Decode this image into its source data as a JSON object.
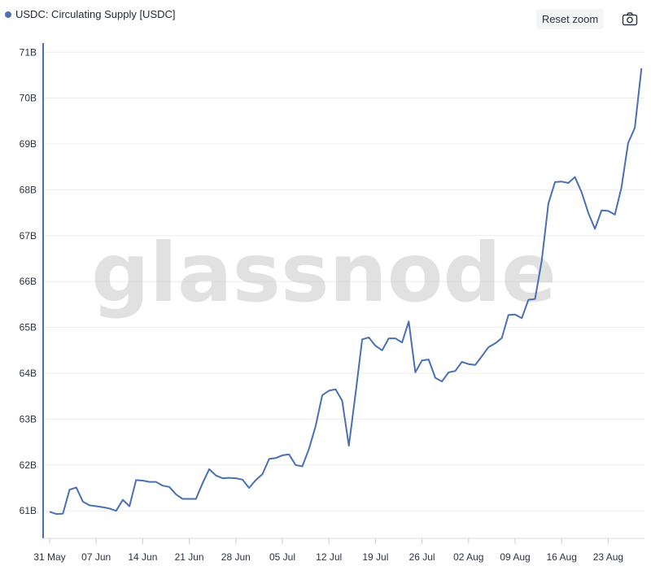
{
  "legend": {
    "label": "USDC: Circulating Supply [USDC]"
  },
  "toolbar": {
    "reset_zoom_label": "Reset zoom",
    "camera_icon": "camera-icon"
  },
  "watermark": "glassnode",
  "colors": {
    "series": "#4a6fb5",
    "grid": "#ececec",
    "axis": "#4a6fb5",
    "tick_text": "#2b3440"
  },
  "chart_data": {
    "type": "line",
    "title": "",
    "xlabel": "",
    "ylabel": "",
    "ylim": [
      60.4,
      71.2
    ],
    "grid": true,
    "legend_placement": "top-left",
    "y_ticks": [
      {
        "value": 61,
        "label": "61B"
      },
      {
        "value": 62,
        "label": "62B"
      },
      {
        "value": 63,
        "label": "63B"
      },
      {
        "value": 64,
        "label": "64B"
      },
      {
        "value": 65,
        "label": "65B"
      },
      {
        "value": 66,
        "label": "66B"
      },
      {
        "value": 67,
        "label": "67B"
      },
      {
        "value": 68,
        "label": "68B"
      },
      {
        "value": 69,
        "label": "69B"
      },
      {
        "value": 70,
        "label": "70B"
      },
      {
        "value": 71,
        "label": "71B"
      }
    ],
    "x_ticks": [
      {
        "date": "2021-05-31",
        "label": "31 May"
      },
      {
        "date": "2021-06-07",
        "label": "07 Jun"
      },
      {
        "date": "2021-06-14",
        "label": "14 Jun"
      },
      {
        "date": "2021-06-21",
        "label": "21 Jun"
      },
      {
        "date": "2021-06-28",
        "label": "28 Jun"
      },
      {
        "date": "2021-07-05",
        "label": "05 Jul"
      },
      {
        "date": "2021-07-12",
        "label": "12 Jul"
      },
      {
        "date": "2021-07-19",
        "label": "19 Jul"
      },
      {
        "date": "2021-07-26",
        "label": "26 Jul"
      },
      {
        "date": "2021-08-02",
        "label": "02 Aug"
      },
      {
        "date": "2021-08-09",
        "label": "09 Aug"
      },
      {
        "date": "2021-08-16",
        "label": "16 Aug"
      },
      {
        "date": "2021-08-23",
        "label": "23 Aug"
      }
    ],
    "series": [
      {
        "name": "USDC: Circulating Supply [USDC]",
        "points": [
          [
            "2021-05-31",
            60.98
          ],
          [
            "2021-06-01",
            60.93
          ],
          [
            "2021-06-02",
            60.94
          ],
          [
            "2021-06-03",
            61.46
          ],
          [
            "2021-06-04",
            61.51
          ],
          [
            "2021-06-05",
            61.2
          ],
          [
            "2021-06-06",
            61.12
          ],
          [
            "2021-06-07",
            61.1
          ],
          [
            "2021-06-08",
            61.08
          ],
          [
            "2021-06-09",
            61.05
          ],
          [
            "2021-06-10",
            61.0
          ],
          [
            "2021-06-11",
            61.24
          ],
          [
            "2021-06-12",
            61.1
          ],
          [
            "2021-06-13",
            61.67
          ],
          [
            "2021-06-14",
            61.66
          ],
          [
            "2021-06-15",
            61.63
          ],
          [
            "2021-06-16",
            61.63
          ],
          [
            "2021-06-17",
            61.55
          ],
          [
            "2021-06-18",
            61.52
          ],
          [
            "2021-06-19",
            61.36
          ],
          [
            "2021-06-20",
            61.26
          ],
          [
            "2021-06-21",
            61.26
          ],
          [
            "2021-06-22",
            61.26
          ],
          [
            "2021-06-23",
            61.6
          ],
          [
            "2021-06-24",
            61.91
          ],
          [
            "2021-06-25",
            61.77
          ],
          [
            "2021-06-26",
            61.71
          ],
          [
            "2021-06-27",
            61.72
          ],
          [
            "2021-06-28",
            61.71
          ],
          [
            "2021-06-29",
            61.68
          ],
          [
            "2021-06-30",
            61.5
          ],
          [
            "2021-07-01",
            61.67
          ],
          [
            "2021-07-02",
            61.8
          ],
          [
            "2021-07-03",
            62.13
          ],
          [
            "2021-07-04",
            62.15
          ],
          [
            "2021-07-05",
            62.21
          ],
          [
            "2021-07-06",
            62.23
          ],
          [
            "2021-07-07",
            62.0
          ],
          [
            "2021-07-08",
            61.97
          ],
          [
            "2021-07-09",
            62.35
          ],
          [
            "2021-07-10",
            62.85
          ],
          [
            "2021-07-11",
            63.52
          ],
          [
            "2021-07-12",
            63.62
          ],
          [
            "2021-07-13",
            63.65
          ],
          [
            "2021-07-14",
            63.4
          ],
          [
            "2021-07-15",
            62.42
          ],
          [
            "2021-07-16",
            63.55
          ],
          [
            "2021-07-17",
            64.74
          ],
          [
            "2021-07-18",
            64.78
          ],
          [
            "2021-07-19",
            64.6
          ],
          [
            "2021-07-20",
            64.5
          ],
          [
            "2021-07-21",
            64.76
          ],
          [
            "2021-07-22",
            64.76
          ],
          [
            "2021-07-23",
            64.67
          ],
          [
            "2021-07-24",
            65.13
          ],
          [
            "2021-07-25",
            64.02
          ],
          [
            "2021-07-26",
            64.28
          ],
          [
            "2021-07-27",
            64.3
          ],
          [
            "2021-07-28",
            63.9
          ],
          [
            "2021-07-29",
            63.82
          ],
          [
            "2021-07-30",
            64.02
          ],
          [
            "2021-07-31",
            64.05
          ],
          [
            "2021-08-01",
            64.25
          ],
          [
            "2021-08-02",
            64.2
          ],
          [
            "2021-08-03",
            64.18
          ],
          [
            "2021-08-04",
            64.37
          ],
          [
            "2021-08-05",
            64.57
          ],
          [
            "2021-08-06",
            64.65
          ],
          [
            "2021-08-07",
            64.77
          ],
          [
            "2021-08-08",
            65.27
          ],
          [
            "2021-08-09",
            65.28
          ],
          [
            "2021-08-10",
            65.2
          ],
          [
            "2021-08-11",
            65.6
          ],
          [
            "2021-08-12",
            65.62
          ],
          [
            "2021-08-13",
            66.45
          ],
          [
            "2021-08-14",
            67.7
          ],
          [
            "2021-08-15",
            68.17
          ],
          [
            "2021-08-16",
            68.18
          ],
          [
            "2021-08-17",
            68.15
          ],
          [
            "2021-08-18",
            68.28
          ],
          [
            "2021-08-19",
            67.95
          ],
          [
            "2021-08-20",
            67.5
          ],
          [
            "2021-08-21",
            67.15
          ],
          [
            "2021-08-22",
            67.55
          ],
          [
            "2021-08-23",
            67.54
          ],
          [
            "2021-08-24",
            67.46
          ],
          [
            "2021-08-25",
            68.05
          ],
          [
            "2021-08-26",
            69.02
          ],
          [
            "2021-08-27",
            69.35
          ],
          [
            "2021-08-28",
            70.65
          ]
        ]
      }
    ]
  }
}
